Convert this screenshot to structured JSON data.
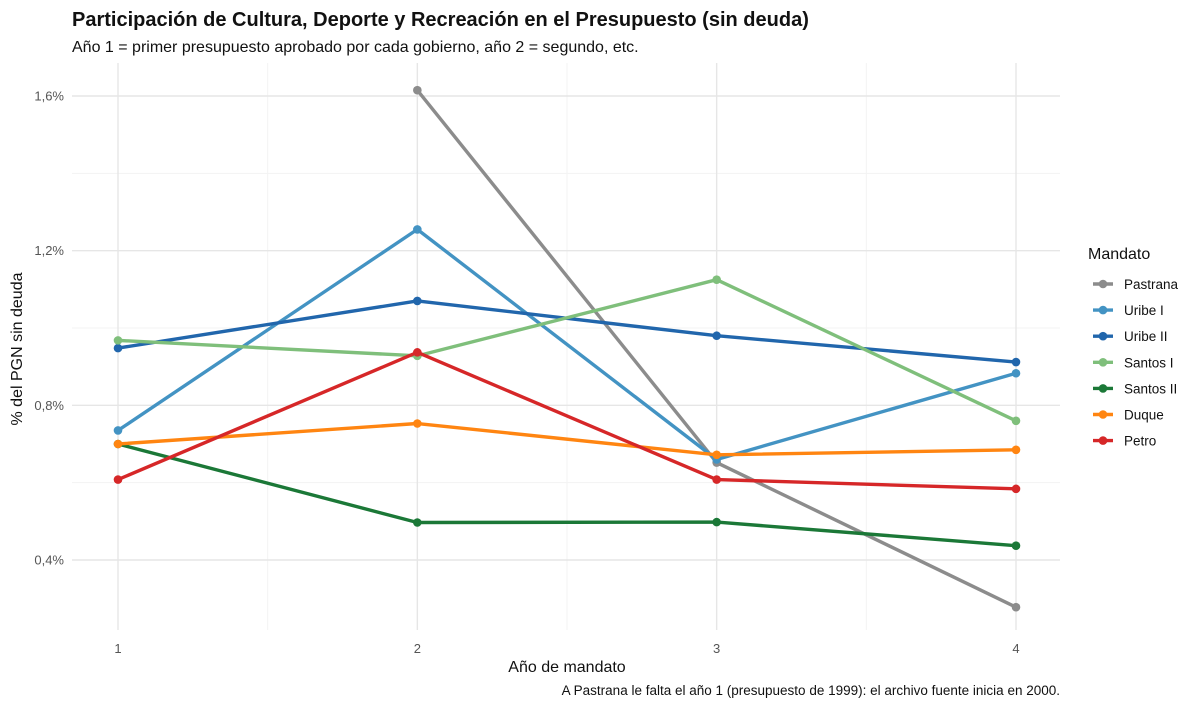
{
  "chart_data": {
    "type": "line",
    "title": "Participación de Cultura, Deporte y Recreación en el Presupuesto (sin deuda)",
    "subtitle": "Año 1 = primer presupuesto aprobado por cada gobierno, año 2 = segundo, etc.",
    "xlabel": "Año de mandato",
    "ylabel": "% del PGN sin deuda",
    "caption": "A Pastrana le falta el año 1 (presupuesto de 1999): el archivo fuente inicia en 2000.",
    "x": [
      1,
      2,
      3,
      4
    ],
    "x_tick_labels": [
      "1",
      "2",
      "3",
      "4"
    ],
    "ylim": [
      0.25,
      1.65
    ],
    "y_ticks": [
      0.4,
      0.8,
      1.2,
      1.6
    ],
    "y_tick_labels": [
      "0,4%",
      "0,8%",
      "1,2%",
      "1,6%"
    ],
    "grid": true,
    "legend_title": "Mandato",
    "legend_position": "right",
    "series": [
      {
        "name": "Pastrana",
        "color": "#8c8c8c",
        "values": [
          null,
          1.615,
          0.652,
          0.278
        ]
      },
      {
        "name": "Uribe I",
        "color": "#4393c3",
        "values": [
          0.735,
          1.255,
          0.66,
          0.883
        ]
      },
      {
        "name": "Uribe II",
        "color": "#2166ac",
        "values": [
          0.948,
          1.07,
          0.98,
          0.912
        ]
      },
      {
        "name": "Santos I",
        "color": "#7fbf7b",
        "values": [
          0.968,
          0.928,
          1.125,
          0.76
        ]
      },
      {
        "name": "Santos II",
        "color": "#1b7837",
        "values": [
          0.7,
          0.497,
          0.498,
          0.437
        ]
      },
      {
        "name": "Duque",
        "color": "#ff8511",
        "values": [
          0.7,
          0.753,
          0.672,
          0.685
        ]
      },
      {
        "name": "Petro",
        "color": "#d62728",
        "values": [
          0.608,
          0.937,
          0.608,
          0.584
        ]
      }
    ]
  }
}
